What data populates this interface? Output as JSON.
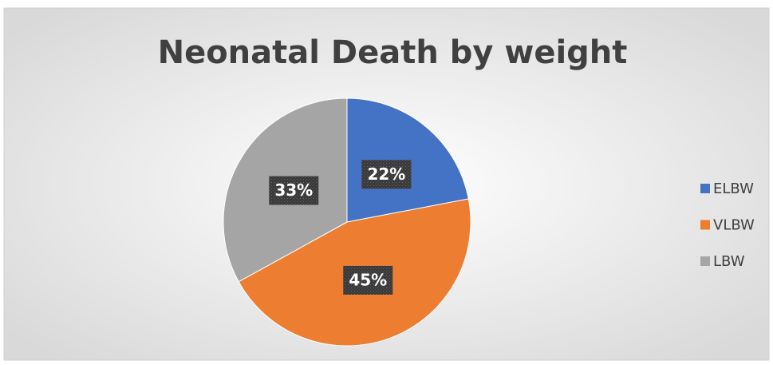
{
  "chart_data": {
    "type": "pie",
    "title": "Neonatal Death by weight",
    "categories": [
      "ELBW",
      "VLBW",
      "LBW"
    ],
    "values": [
      22,
      45,
      33
    ],
    "value_labels": [
      "22%",
      "45%",
      "33%"
    ],
    "colors": [
      "#4472c4",
      "#ed7d31",
      "#a5a5a5"
    ],
    "legend": "right"
  }
}
